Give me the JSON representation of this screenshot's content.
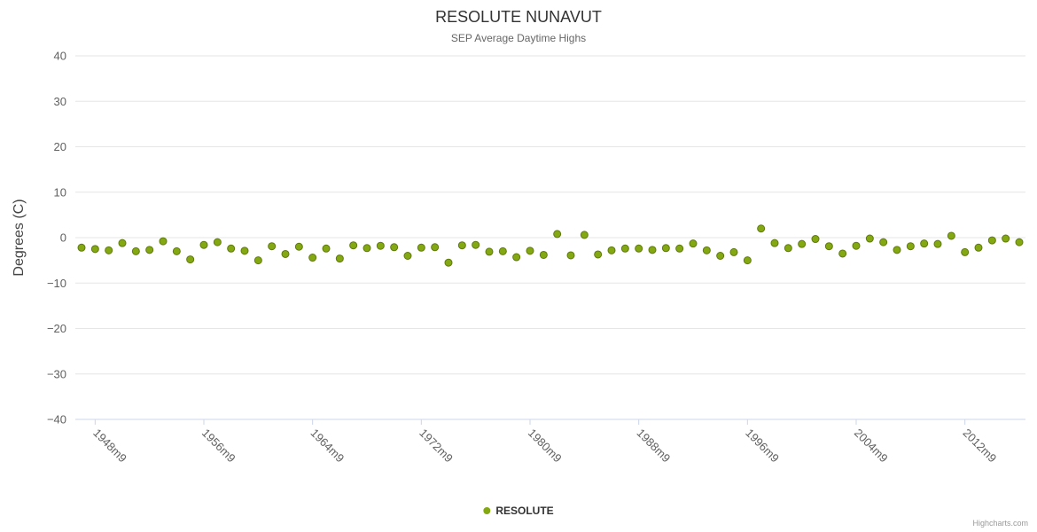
{
  "chart": {
    "title": "RESOLUTE NUNAVUT",
    "subtitle": "SEP Average Daytime Highs",
    "ylabel": "Degrees (C)",
    "legend_label": "RESOLUTE",
    "credits": "Highcharts.com"
  },
  "chart_data": {
    "type": "scatter",
    "title": "RESOLUTE NUNAVUT",
    "subtitle": "SEP Average Daytime Highs",
    "ylabel": "Degrees (C)",
    "series_name": "RESOLUTE",
    "color": "#84a812",
    "point_stroke": "#5f7a0c",
    "ylim": [
      -40,
      40
    ],
    "y_ticks": [
      40,
      30,
      20,
      10,
      0,
      -10,
      -20,
      -30,
      -40
    ],
    "x_range": [
      1947,
      2016
    ],
    "x_ticks": {
      "years": [
        1948,
        1956,
        1964,
        1972,
        1980,
        1988,
        1996,
        2004,
        2012
      ],
      "labels": [
        "1948m9",
        "1956m9",
        "1964m9",
        "1972m9",
        "1980m9",
        "1988m9",
        "1996m9",
        "2004m9",
        "2012m9"
      ]
    },
    "legend_position": "bottom-center",
    "grid": true,
    "points": [
      [
        1947,
        -2.2
      ],
      [
        1948,
        -2.5
      ],
      [
        1949,
        -2.8
      ],
      [
        1950,
        -1.2
      ],
      [
        1951,
        -3.0
      ],
      [
        1952,
        -2.7
      ],
      [
        1953,
        -0.8
      ],
      [
        1954,
        -3.0
      ],
      [
        1955,
        -4.8
      ],
      [
        1956,
        -1.6
      ],
      [
        1957,
        -1.0
      ],
      [
        1958,
        -2.4
      ],
      [
        1959,
        -2.9
      ],
      [
        1960,
        -5.0
      ],
      [
        1961,
        -1.9
      ],
      [
        1962,
        -3.6
      ],
      [
        1963,
        -2.0
      ],
      [
        1964,
        -4.4
      ],
      [
        1965,
        -2.4
      ],
      [
        1966,
        -4.6
      ],
      [
        1967,
        -1.7
      ],
      [
        1968,
        -2.3
      ],
      [
        1969,
        -1.8
      ],
      [
        1970,
        -2.1
      ],
      [
        1971,
        -4.0
      ],
      [
        1972,
        -2.2
      ],
      [
        1973,
        -2.1
      ],
      [
        1974,
        -5.5
      ],
      [
        1975,
        -1.7
      ],
      [
        1976,
        -1.6
      ],
      [
        1977,
        -3.1
      ],
      [
        1978,
        -3.0
      ],
      [
        1979,
        -4.3
      ],
      [
        1980,
        -2.9
      ],
      [
        1981,
        -3.8
      ],
      [
        1982,
        0.8
      ],
      [
        1983,
        -3.9
      ],
      [
        1984,
        0.6
      ],
      [
        1985,
        -3.7
      ],
      [
        1986,
        -2.8
      ],
      [
        1987,
        -2.4
      ],
      [
        1988,
        -2.4
      ],
      [
        1989,
        -2.7
      ],
      [
        1990,
        -2.3
      ],
      [
        1991,
        -2.4
      ],
      [
        1992,
        -1.3
      ],
      [
        1993,
        -2.8
      ],
      [
        1994,
        -4.0
      ],
      [
        1995,
        -3.2
      ],
      [
        1996,
        -5.0
      ],
      [
        1997,
        2.0
      ],
      [
        1998,
        -1.2
      ],
      [
        1999,
        -2.3
      ],
      [
        2000,
        -1.4
      ],
      [
        2001,
        -0.3
      ],
      [
        2002,
        -1.9
      ],
      [
        2003,
        -3.5
      ],
      [
        2004,
        -1.8
      ],
      [
        2005,
        -0.2
      ],
      [
        2006,
        -1.0
      ],
      [
        2007,
        -2.7
      ],
      [
        2008,
        -1.9
      ],
      [
        2009,
        -1.3
      ],
      [
        2010,
        -1.4
      ],
      [
        2011,
        0.4
      ],
      [
        2012,
        -3.2
      ],
      [
        2013,
        -2.2
      ],
      [
        2014,
        -0.6
      ],
      [
        2015,
        -0.2
      ],
      [
        2016,
        -1.0
      ]
    ]
  }
}
